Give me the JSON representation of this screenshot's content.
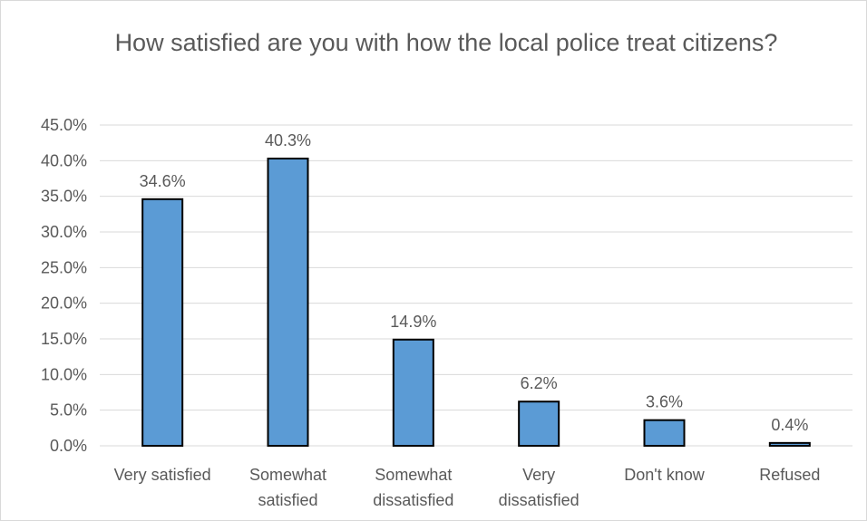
{
  "chart_data": {
    "type": "bar",
    "title": "How satisfied are you with how the local police treat citizens?",
    "categories": [
      "Very satisfied",
      "Somewhat satisfied",
      "Somewhat dissatisfied",
      "Very dissatisfied",
      "Don't know",
      "Refused"
    ],
    "category_lines": [
      [
        "Very satisfied"
      ],
      [
        "Somewhat",
        "satisfied"
      ],
      [
        "Somewhat",
        "dissatisfied"
      ],
      [
        "Very",
        "dissatisfied"
      ],
      [
        "Don't know"
      ],
      [
        "Refused"
      ]
    ],
    "values": [
      34.6,
      40.3,
      14.9,
      6.2,
      3.6,
      0.4
    ],
    "data_labels": [
      "34.6%",
      "40.3%",
      "14.9%",
      "6.2%",
      "3.6%",
      "0.4%"
    ],
    "y_ticks": [
      "0.0%",
      "5.0%",
      "10.0%",
      "15.0%",
      "20.0%",
      "25.0%",
      "30.0%",
      "35.0%",
      "40.0%",
      "45.0%"
    ],
    "ylim": [
      0,
      45
    ],
    "xlabel": "",
    "ylabel": "",
    "grid": true,
    "legend": "none",
    "colors": {
      "bar_fill": "#5b9bd5",
      "bar_stroke": "#000000",
      "gridline": "#d9d9d9",
      "text": "#595959"
    }
  }
}
